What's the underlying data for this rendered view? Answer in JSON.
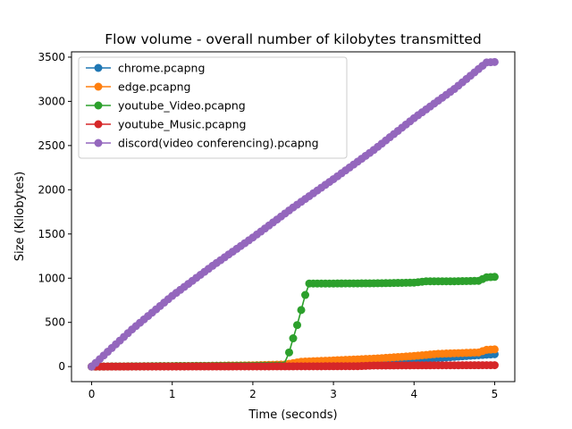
{
  "chart_data": {
    "type": "line",
    "title": "Flow volume - overall number of kilobytes transmitted",
    "xlabel": "Time (seconds)",
    "ylabel": "Size (Kilobytes)",
    "xlim": [
      -0.25,
      5.25
    ],
    "ylim": [
      -170,
      3560
    ],
    "xticks": [
      0,
      1,
      2,
      3,
      4,
      5
    ],
    "yticks": [
      0,
      500,
      1000,
      1500,
      2000,
      2500,
      3000,
      3500
    ],
    "grid": false,
    "legend_position": "top-left",
    "marker": "circle",
    "series": [
      {
        "name": "chrome.pcapng",
        "color": "#1f77b4",
        "points": [
          [
            0,
            0
          ],
          [
            0.5,
            3
          ],
          [
            1,
            6
          ],
          [
            1.5,
            9
          ],
          [
            2,
            12
          ],
          [
            2.5,
            20
          ],
          [
            3,
            35
          ],
          [
            3.5,
            50
          ],
          [
            4,
            80
          ],
          [
            4.5,
            110
          ],
          [
            4.9,
            135
          ],
          [
            5,
            140
          ]
        ]
      },
      {
        "name": "edge.pcapng",
        "color": "#ff7f0e",
        "points": [
          [
            0,
            0
          ],
          [
            0.5,
            3
          ],
          [
            1,
            6
          ],
          [
            1.5,
            9
          ],
          [
            2,
            15
          ],
          [
            2.4,
            25
          ],
          [
            2.6,
            55
          ],
          [
            3,
            70
          ],
          [
            3.5,
            90
          ],
          [
            4,
            120
          ],
          [
            4.3,
            145
          ],
          [
            4.8,
            160
          ],
          [
            4.9,
            190
          ],
          [
            5,
            195
          ]
        ]
      },
      {
        "name": "youtube_Video.pcapng",
        "color": "#2ca02c",
        "points": [
          [
            0,
            0
          ],
          [
            1,
            5
          ],
          [
            2,
            10
          ],
          [
            2.38,
            12
          ],
          [
            2.45,
            160
          ],
          [
            2.5,
            320
          ],
          [
            2.55,
            470
          ],
          [
            2.6,
            640
          ],
          [
            2.65,
            810
          ],
          [
            2.7,
            940
          ],
          [
            3,
            940
          ],
          [
            3.5,
            942
          ],
          [
            3.7,
            945
          ],
          [
            4,
            950
          ],
          [
            4.15,
            965
          ],
          [
            4.5,
            965
          ],
          [
            4.8,
            970
          ],
          [
            4.9,
            1010
          ],
          [
            5,
            1015
          ]
        ]
      },
      {
        "name": "youtube_Music.pcapng",
        "color": "#d62728",
        "points": [
          [
            0,
            0
          ],
          [
            1,
            1
          ],
          [
            2,
            2
          ],
          [
            3,
            4
          ],
          [
            3.3,
            5
          ],
          [
            3.5,
            12
          ],
          [
            4,
            14
          ],
          [
            4.5,
            15
          ],
          [
            5,
            16
          ]
        ]
      },
      {
        "name": "discord(video conferencing).pcapng",
        "color": "#9467bd",
        "points": [
          [
            0,
            0
          ],
          [
            0.5,
            420
          ],
          [
            1,
            800
          ],
          [
            1.5,
            1140
          ],
          [
            2,
            1460
          ],
          [
            2.5,
            1800
          ],
          [
            3,
            2120
          ],
          [
            3.5,
            2450
          ],
          [
            4,
            2810
          ],
          [
            4.5,
            3140
          ],
          [
            4.9,
            3440
          ],
          [
            5,
            3445
          ]
        ]
      }
    ]
  }
}
